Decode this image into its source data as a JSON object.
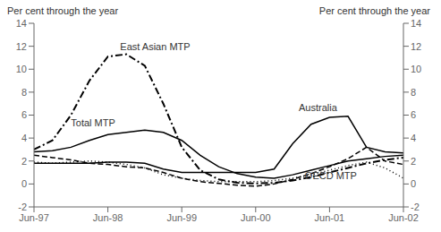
{
  "chart_data": {
    "type": "line",
    "ylabel": "Per cent through the year",
    "y2label": "Per cent through the year",
    "x": [
      0,
      3,
      6,
      9,
      12,
      15,
      18,
      21,
      24,
      27,
      30,
      33,
      36,
      39,
      42,
      45,
      48,
      51,
      54,
      57,
      60
    ],
    "xlim": [
      0,
      60
    ],
    "xticks": [
      {
        "value": 0,
        "label": "Jun-97"
      },
      {
        "value": 12,
        "label": "Jun-98"
      },
      {
        "value": 24,
        "label": "Jun-99"
      },
      {
        "value": 36,
        "label": "Jun-00"
      },
      {
        "value": 48,
        "label": "Jun-01"
      },
      {
        "value": 60,
        "label": "Jun-02"
      }
    ],
    "ylim": [
      -2,
      14
    ],
    "yticks": [
      -2,
      0,
      2,
      4,
      6,
      8,
      10,
      12,
      14
    ],
    "y2lim": [
      -2,
      14
    ],
    "y2ticks": [
      -2,
      0,
      2,
      4,
      6,
      8,
      10,
      12,
      14
    ],
    "grid": false,
    "series": [
      {
        "color": "#000000",
        "line_style": "solid",
        "values": [
          1.8,
          1.8,
          1.8,
          1.8,
          1.9,
          1.9,
          1.8,
          1.3,
          1.0,
          1.0,
          1.0,
          1.0,
          1.0,
          1.3,
          3.5,
          5.2,
          5.8,
          5.9,
          3.2,
          2.8,
          2.7
        ]
      },
      {
        "color": "#000000",
        "line_style": "solid",
        "values": [
          2.8,
          2.9,
          3.2,
          3.8,
          4.3,
          4.5,
          4.7,
          4.5,
          3.8,
          2.5,
          1.5,
          0.9,
          0.6,
          0.5,
          0.8,
          1.2,
          1.6,
          2.0,
          2.2,
          2.4,
          2.5
        ]
      },
      {
        "color": "#000000",
        "line_style": "dashdot",
        "values": [
          3.0,
          3.8,
          6.0,
          9.0,
          11.1,
          11.3,
          10.3,
          7.0,
          3.2,
          1.2,
          0.4,
          0.1,
          0.05,
          0.1,
          0.3,
          0.6,
          1.0,
          1.4,
          1.8,
          2.1,
          2.3
        ]
      },
      {
        "color": "#000000",
        "line_style": "dotted",
        "values": [
          1.9,
          1.8,
          1.9,
          2.0,
          1.9,
          1.7,
          1.4,
          0.8,
          0.5,
          0.3,
          0.2,
          0.2,
          0.2,
          0.3,
          0.5,
          0.8,
          1.2,
          1.6,
          1.9,
          1.4,
          0.5
        ]
      },
      {
        "color": "#000000",
        "line_style": "dashed",
        "values": [
          2.5,
          2.3,
          2.1,
          1.8,
          1.7,
          1.5,
          1.4,
          1.0,
          0.5,
          0.2,
          0.05,
          -0.1,
          -0.2,
          0.0,
          0.4,
          0.9,
          1.5,
          2.2,
          3.2,
          2.0,
          1.7
        ]
      }
    ],
    "annotations": [
      {
        "text": "East Asian MTP",
        "x": 14,
        "y": 11.5
      },
      {
        "text": "Total MTP",
        "x": 6,
        "y": 4.9
      },
      {
        "text": "Australia",
        "x": 43,
        "y": 6.2
      },
      {
        "text": "OECD MTP",
        "x": 44,
        "y": 0.3
      }
    ]
  }
}
